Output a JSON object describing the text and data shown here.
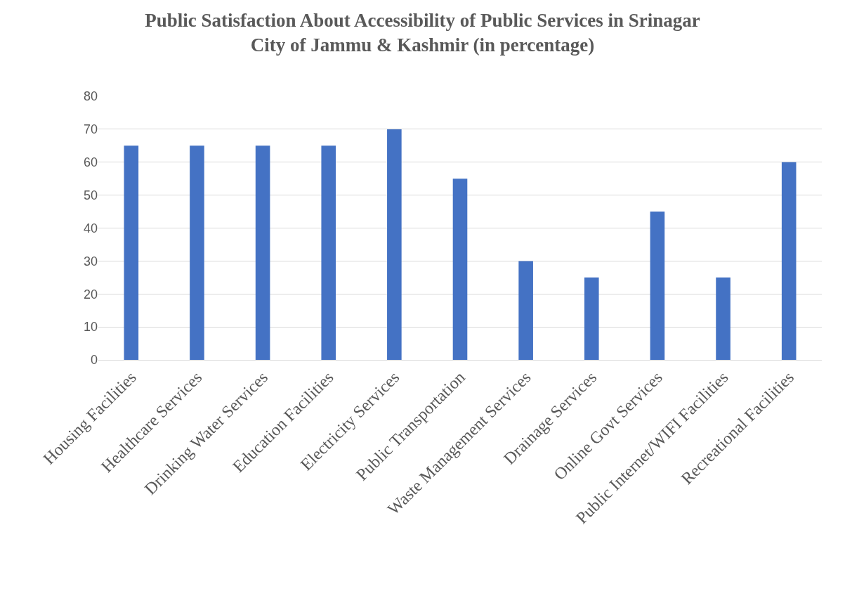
{
  "chart_data": {
    "type": "bar",
    "title": "Public Satisfaction About Accessibility of Public Services in Srinagar\nCity of Jammu & Kashmir (in percentage)",
    "categories": [
      "Housing Facilities",
      "Healthcare Services",
      "Drinking Water Services",
      "Education Facilities",
      "Electricity Services",
      "Public Transportation",
      "Waste Management Services",
      "Drainage Services",
      "Online Govt Services",
      "Public Internet/WIFI Facilities",
      "Recreational Facilities"
    ],
    "values": [
      65,
      65,
      65,
      65,
      70,
      55,
      30,
      25,
      45,
      25,
      60
    ],
    "color": "#4472c4",
    "ylim": [
      0,
      80
    ],
    "yticks": [
      0,
      10,
      20,
      30,
      40,
      50,
      60,
      70,
      80
    ],
    "grid": "y"
  }
}
